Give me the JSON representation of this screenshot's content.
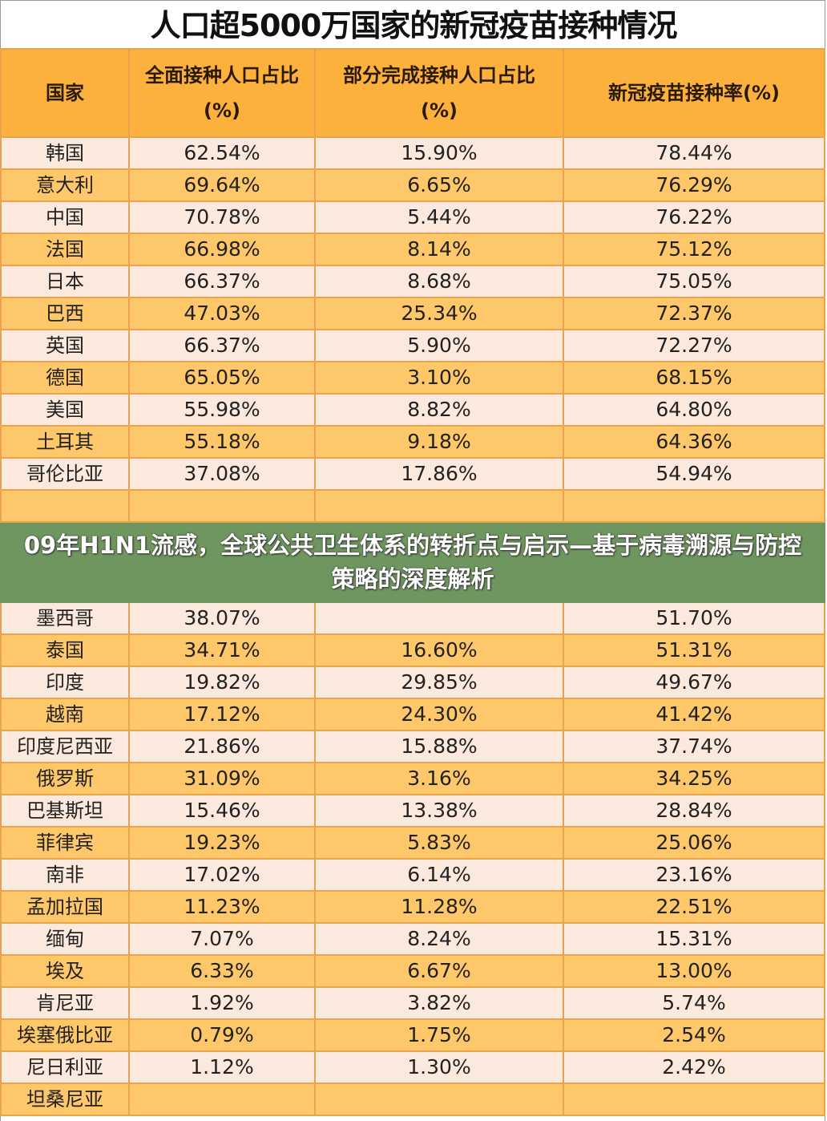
{
  "title": "人口超5000万国家的新冠疫苗接种情况",
  "headers": [
    "国家",
    "全面接种人口占比\n(%)",
    "部分完成接种人口占比\n(%)",
    "新冠疫苗接种率(%)"
  ],
  "header_lines": [
    [
      "国家"
    ],
    [
      "全面接种人口占比",
      "(%)"
    ],
    [
      "部分完成接种人口占比",
      "(%)"
    ],
    [
      "新冠疫苗接种率(%)"
    ]
  ],
  "rows": [
    [
      "韩国",
      "62.54%",
      "15.90%",
      "78.44%"
    ],
    [
      "意大利",
      "69.64%",
      "6.65%",
      "76.29%"
    ],
    [
      "中国",
      "70.78%",
      "5.44%",
      "76.22%"
    ],
    [
      "法国",
      "66.98%",
      "8.14%",
      "75.12%"
    ],
    [
      "日本",
      "66.37%",
      "8.68%",
      "75.05%"
    ],
    [
      "巴西",
      "47.03%",
      "25.34%",
      "72.37%"
    ],
    [
      "英国",
      "66.37%",
      "5.90%",
      "72.27%"
    ],
    [
      "德国",
      "65.05%",
      "3.10%",
      "68.15%"
    ],
    [
      "美国",
      "55.98%",
      "8.82%",
      "64.80%"
    ],
    [
      "土耳其",
      "55.18%",
      "9.18%",
      "64.36%"
    ],
    [
      "哥伦比亚",
      "37.08%",
      "17.86%",
      "54.94%"
    ],
    [
      "",
      "",
      "",
      ""
    ],
    [
      "墨西哥",
      "38.07%",
      "",
      "51.70%"
    ],
    [
      "泰国",
      "34.71%",
      "16.60%",
      "51.31%"
    ],
    [
      "印度",
      "19.82%",
      "29.85%",
      "49.67%"
    ],
    [
      "越南",
      "17.12%",
      "24.30%",
      "41.42%"
    ],
    [
      "印度尼西亚",
      "21.86%",
      "15.88%",
      "37.74%"
    ],
    [
      "俄罗斯",
      "31.09%",
      "3.16%",
      "34.25%"
    ],
    [
      "巴基斯坦",
      "15.46%",
      "13.38%",
      "28.84%"
    ],
    [
      "菲律宾",
      "19.23%",
      "5.83%",
      "25.06%"
    ],
    [
      "南非",
      "17.02%",
      "6.14%",
      "23.16%"
    ],
    [
      "孟加拉国",
      "11.23%",
      "11.28%",
      "22.51%"
    ],
    [
      "缅甸",
      "7.07%",
      "8.24%",
      "15.31%"
    ],
    [
      "埃及",
      "6.33%",
      "6.67%",
      "13.00%"
    ],
    [
      "肯尼亚",
      "1.92%",
      "3.82%",
      "5.74%"
    ],
    [
      "埃塞俄比亚",
      "0.79%",
      "1.75%",
      "2.54%"
    ],
    [
      "尼日利亚",
      "1.12%",
      "1.30%",
      "2.42%"
    ],
    [
      "坦桑尼亚",
      "",
      "",
      ""
    ]
  ],
  "overlay_caption": "09年H1N1流感，全球公共卫生体系的转折点与启示—基于病毒溯源与防控策略的深度解析",
  "colors": {
    "header": "#fbb13c",
    "row_light": "#fce9dd",
    "row_dark": "#fdc76a",
    "grid": "#e9a24e",
    "overlay": "#709660"
  }
}
